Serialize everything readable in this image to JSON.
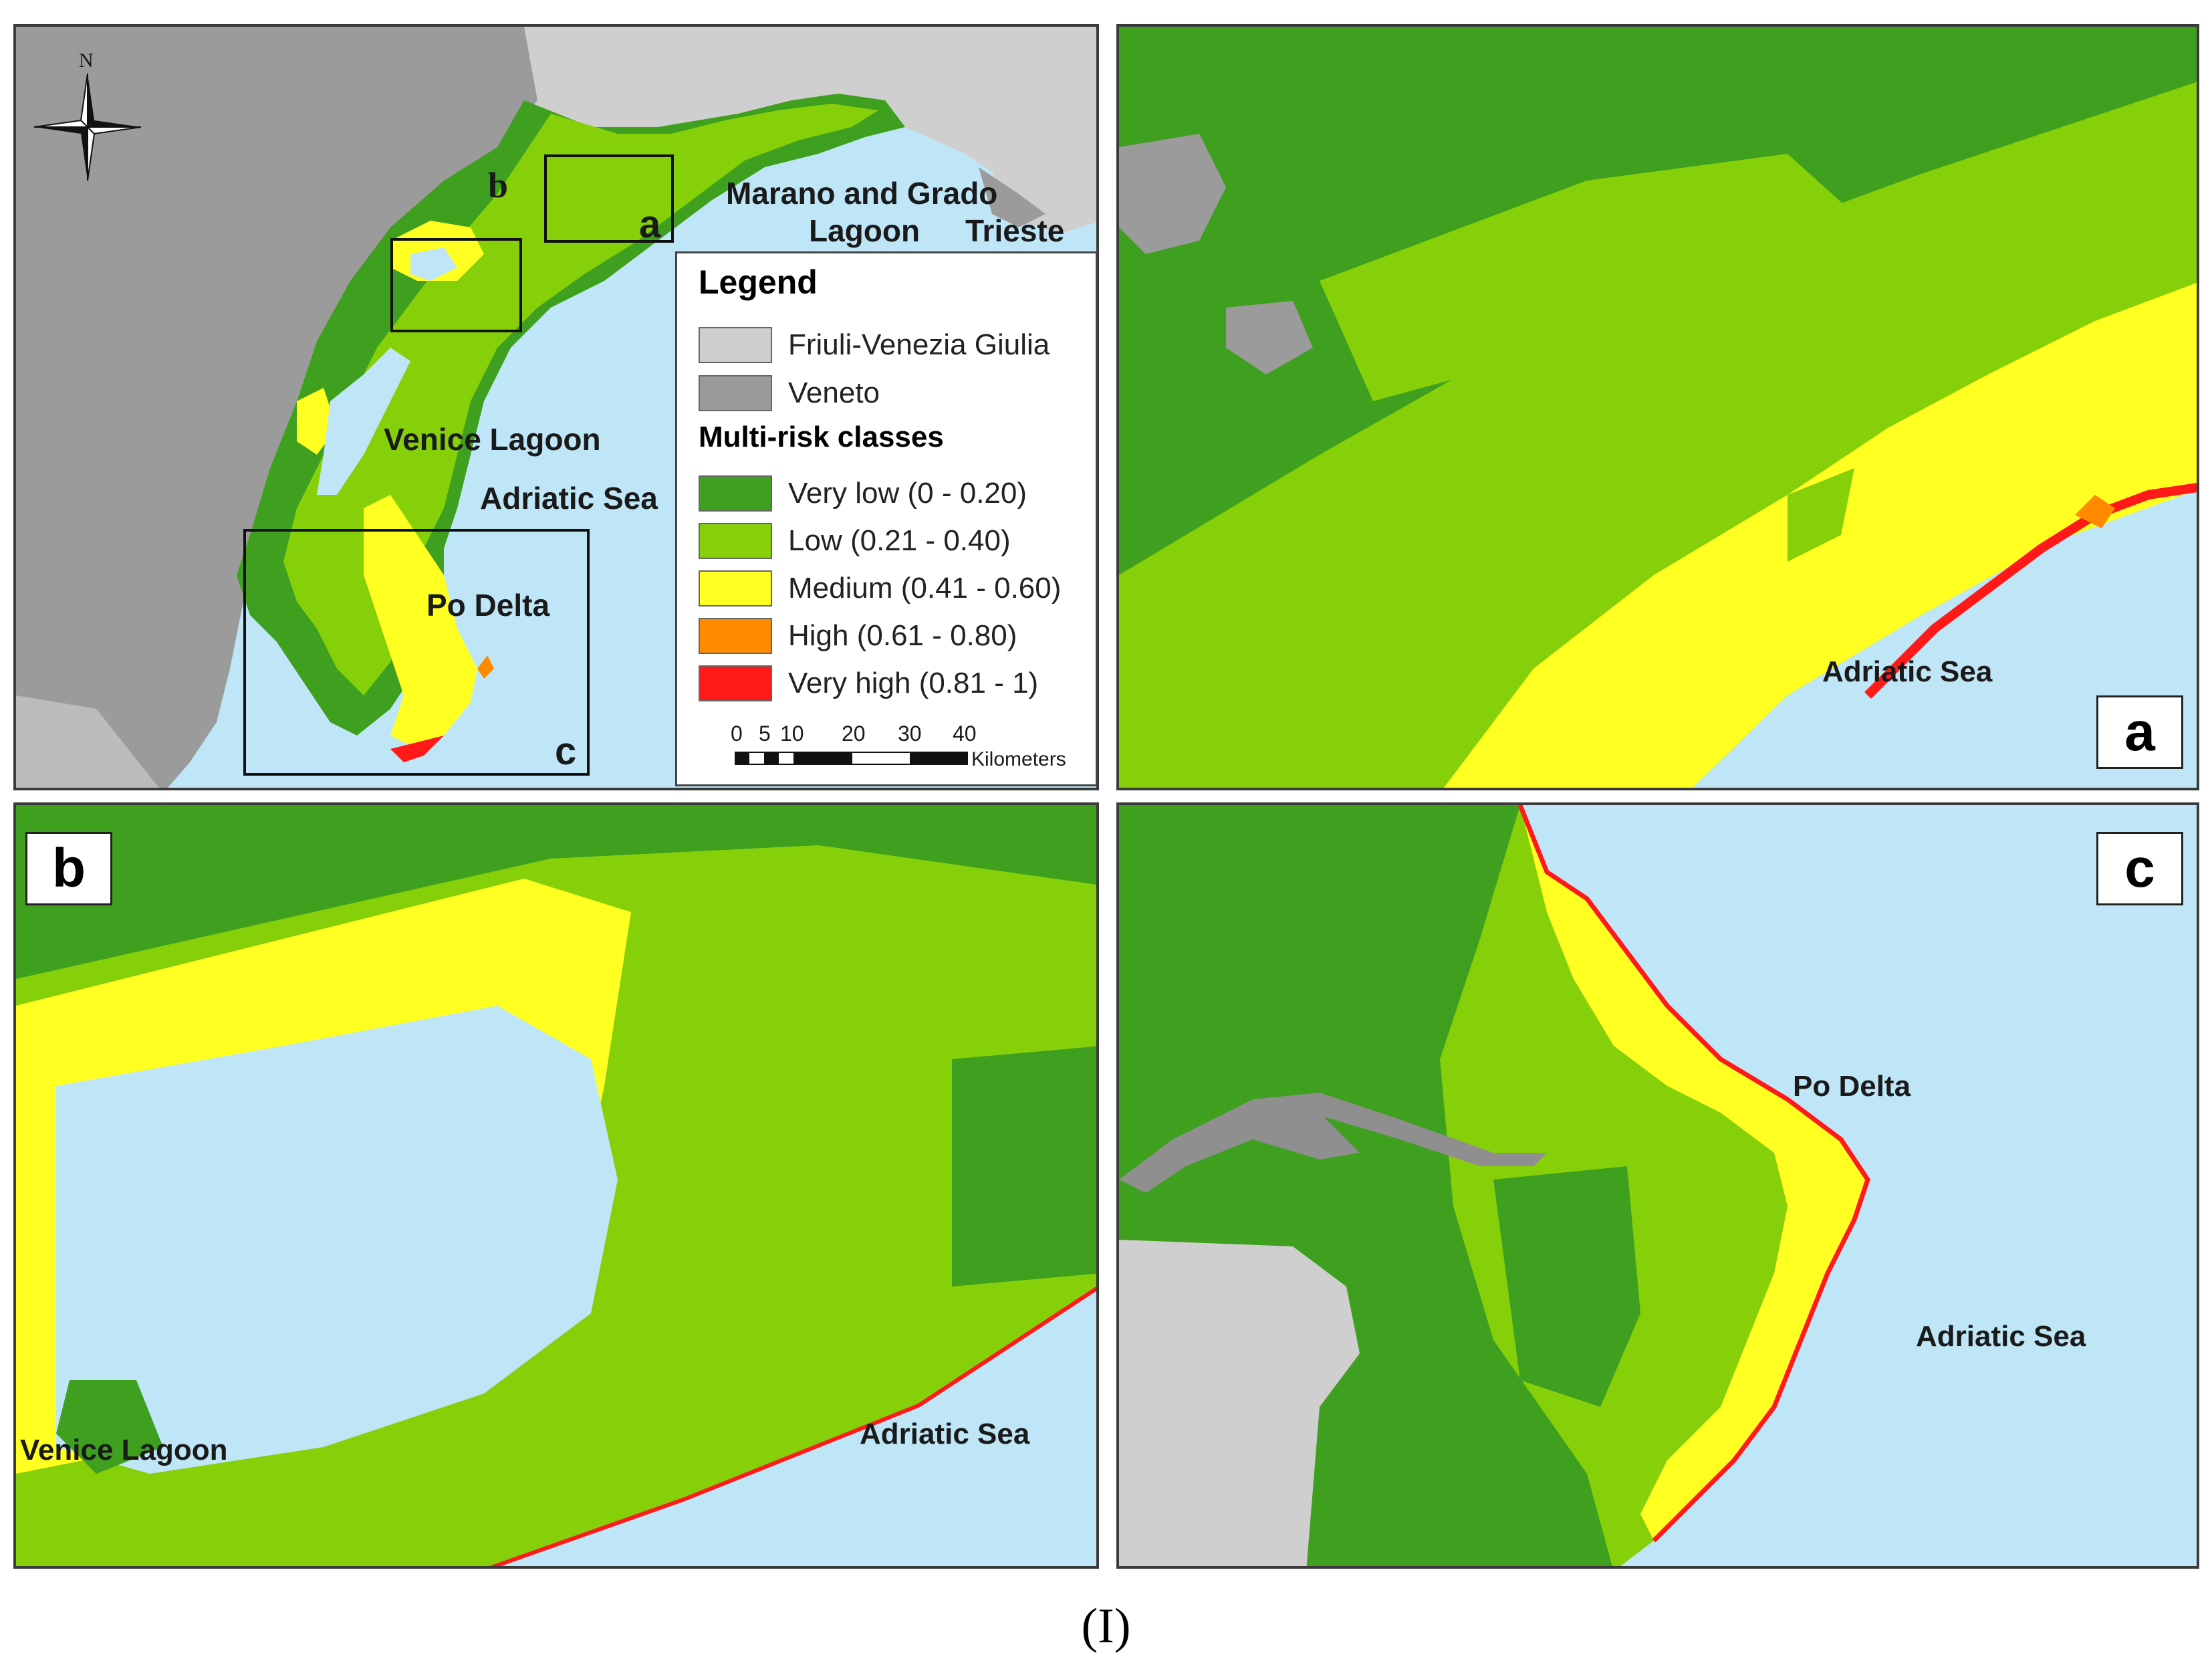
{
  "figure_caption": "(I)",
  "colors": {
    "sea": "#bfe6f7",
    "friuli": "#cfcfcf",
    "veneto": "#9b9b9b",
    "very_low": "#3f9f1e",
    "low": "#86d00a",
    "medium": "#ffff22",
    "high": "#ff8a00",
    "very_high": "#ff1a1a"
  },
  "overview": {
    "north_label": "N",
    "labels": {
      "marano_grado": "Marano and Grado",
      "lagoon": "Lagoon",
      "trieste": "Trieste",
      "venice_lagoon": "Venice Lagoon",
      "adriatic_sea": "Adriatic Sea",
      "po_delta": "Po Delta"
    },
    "box_labels": {
      "a": "a",
      "b": "b",
      "c": "c"
    }
  },
  "legend": {
    "title": "Legend",
    "regions": [
      {
        "label": "Friuli-Venezia Giulia",
        "color": "#cfcfcf"
      },
      {
        "label": "Veneto",
        "color": "#9b9b9b"
      }
    ],
    "classes_title": "Multi-risk classes",
    "classes": [
      {
        "label": "Very low (0 - 0.20)",
        "color": "#3f9f1e"
      },
      {
        "label": "Low (0.21 - 0.40)",
        "color": "#86d00a"
      },
      {
        "label": "Medium (0.41 - 0.60)",
        "color": "#ffff22"
      },
      {
        "label": "High (0.61 - 0.80)",
        "color": "#ff8a00"
      },
      {
        "label": "Very high (0.81 - 1)",
        "color": "#ff1a1a"
      }
    ],
    "scale": {
      "ticks": [
        "0",
        "5",
        "10",
        "20",
        "30",
        "40"
      ],
      "unit": "Kilometers"
    }
  },
  "panel_a": {
    "letter": "a",
    "sea_label": "Adriatic Sea"
  },
  "panel_b": {
    "letter": "b",
    "lagoon_label": "Venice Lagoon",
    "sea_label": "Adriatic Sea"
  },
  "panel_c": {
    "letter": "c",
    "delta_label": "Po Delta",
    "sea_label": "Adriatic Sea"
  }
}
